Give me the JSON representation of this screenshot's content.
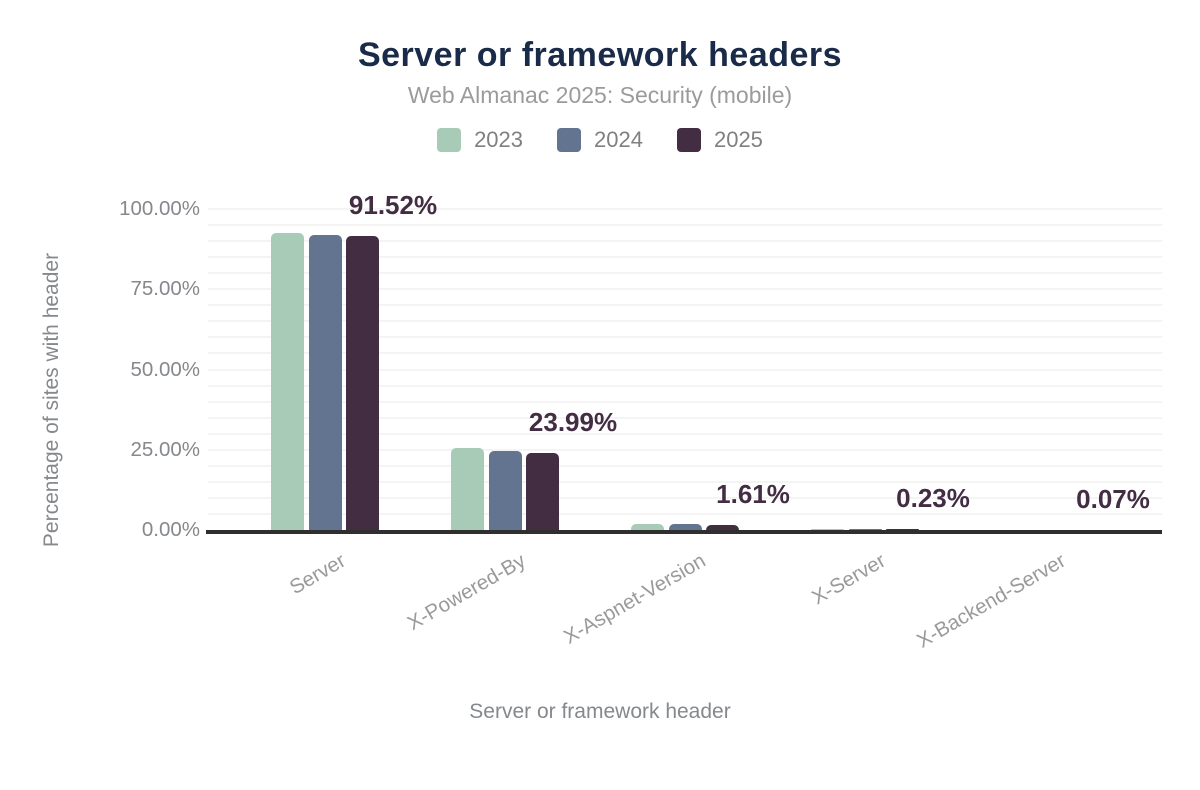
{
  "chart_data": {
    "type": "bar",
    "title": "Server or framework headers",
    "subtitle": "Web Almanac 2025: Security (mobile)",
    "xlabel": "Server or framework header",
    "ylabel": "Percentage of sites with header",
    "categories": [
      "Server",
      "X-Powered-By",
      "X-Aspnet-Version",
      "X-Server",
      "X-Backend-Server"
    ],
    "series": [
      {
        "name": "2023",
        "color": "#a8cbb7",
        "values": [
          92.5,
          25.4,
          1.9,
          0.3,
          0.1
        ]
      },
      {
        "name": "2024",
        "color": "#62748f",
        "values": [
          92.0,
          24.7,
          1.75,
          0.26,
          0.08
        ]
      },
      {
        "name": "2025",
        "color": "#432d43",
        "values": [
          91.52,
          23.99,
          1.61,
          0.23,
          0.07
        ]
      }
    ],
    "data_labels": [
      "91.52%",
      "23.99%",
      "1.61%",
      "0.23%",
      "0.07%"
    ],
    "ytick_values": [
      0,
      25,
      50,
      75,
      100
    ],
    "ytick_labels": [
      "0.00%",
      "25.00%",
      "50.00%",
      "75.00%",
      "100.00%"
    ],
    "ylim": [
      0,
      100
    ],
    "grid": "horizontal, minor lines every 5%",
    "legend_position": "top",
    "accent_colors": {
      "title": "#1a2b49",
      "data_label": "#432d43",
      "axis_line": "#2f2f2f",
      "gridline": "#f4f4f4",
      "muted_text": "#85888c"
    }
  }
}
